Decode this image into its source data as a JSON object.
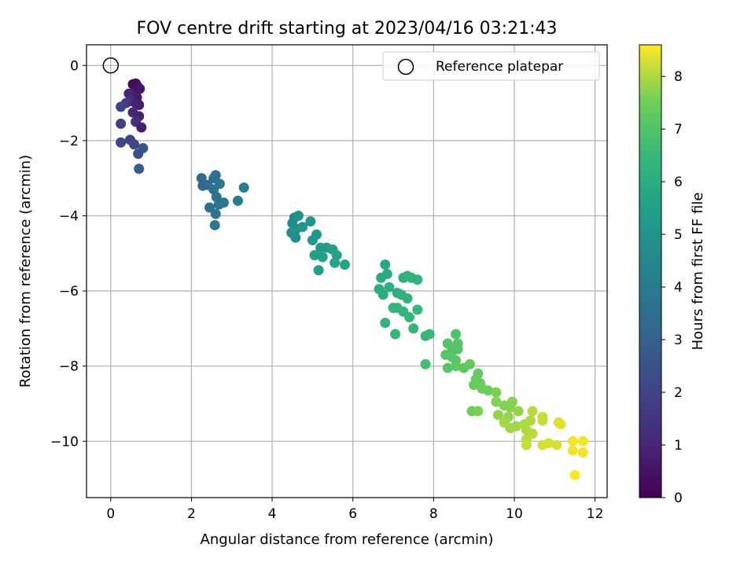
{
  "chart_data": {
    "type": "scatter",
    "title": "FOV centre drift starting at 2023/04/16 03:21:43",
    "xlabel": "Angular distance from reference (arcmin)",
    "ylabel": "Rotation from reference (arcmin)",
    "xlim": [
      -0.6,
      12.3
    ],
    "ylim": [
      -11.5,
      0.55
    ],
    "xticks": [
      0,
      2,
      4,
      6,
      8,
      10,
      12
    ],
    "yticks": [
      0,
      -2,
      -4,
      -6,
      -8,
      -10
    ],
    "xtick_labels": [
      "0",
      "2",
      "4",
      "6",
      "8",
      "10",
      "12"
    ],
    "ytick_labels": [
      "0",
      "−2",
      "−4",
      "−6",
      "−8",
      "−10"
    ],
    "grid": true,
    "legend": {
      "placement": "top-right",
      "entries": [
        "Reference platepar"
      ]
    },
    "reference_point": {
      "x": 0,
      "y": 0,
      "label": "Reference platepar"
    },
    "colorbar": {
      "label": "Hours from first FF file",
      "range": [
        0,
        8.6
      ],
      "ticks": [
        0,
        1,
        2,
        3,
        4,
        5,
        6,
        7,
        8
      ],
      "tick_labels": [
        "0",
        "1",
        "2",
        "3",
        "4",
        "5",
        "6",
        "7",
        "8"
      ],
      "colormap": "viridis"
    },
    "points": [
      {
        "x": 0.55,
        "y": -0.5,
        "c": 0.2
      },
      {
        "x": 0.62,
        "y": -0.48,
        "c": 0.3
      },
      {
        "x": 0.66,
        "y": -0.55,
        "c": 0.4
      },
      {
        "x": 0.6,
        "y": -0.7,
        "c": 0.5
      },
      {
        "x": 0.72,
        "y": -0.62,
        "c": 0.6
      },
      {
        "x": 0.65,
        "y": -0.85,
        "c": 0.7
      },
      {
        "x": 0.7,
        "y": -1.05,
        "c": 0.8
      },
      {
        "x": 0.45,
        "y": -0.75,
        "c": 1.0
      },
      {
        "x": 0.5,
        "y": -0.95,
        "c": 1.2
      },
      {
        "x": 0.62,
        "y": -1.0,
        "c": 0.9
      },
      {
        "x": 0.55,
        "y": -1.25,
        "c": 1.1
      },
      {
        "x": 0.38,
        "y": -1.0,
        "c": 1.7
      },
      {
        "x": 0.25,
        "y": -1.1,
        "c": 2.0
      },
      {
        "x": 0.7,
        "y": -1.35,
        "c": 0.9
      },
      {
        "x": 0.62,
        "y": -1.5,
        "c": 1.3
      },
      {
        "x": 0.76,
        "y": -1.65,
        "c": 0.8
      },
      {
        "x": 0.25,
        "y": -1.55,
        "c": 1.8
      },
      {
        "x": 0.25,
        "y": -2.05,
        "c": 2.0
      },
      {
        "x": 0.48,
        "y": -1.98,
        "c": 1.9
      },
      {
        "x": 0.58,
        "y": -2.1,
        "c": 2.1
      },
      {
        "x": 0.68,
        "y": -2.35,
        "c": 2.4
      },
      {
        "x": 0.8,
        "y": -2.2,
        "c": 2.6
      },
      {
        "x": 0.7,
        "y": -2.75,
        "c": 2.8
      },
      {
        "x": 2.25,
        "y": -3.0,
        "c": 3.3
      },
      {
        "x": 2.28,
        "y": -3.2,
        "c": 3.2
      },
      {
        "x": 2.4,
        "y": -3.18,
        "c": 3.4
      },
      {
        "x": 2.55,
        "y": -3.0,
        "c": 3.5
      },
      {
        "x": 2.6,
        "y": -2.92,
        "c": 3.6
      },
      {
        "x": 2.55,
        "y": -3.3,
        "c": 3.7
      },
      {
        "x": 2.7,
        "y": -3.15,
        "c": 3.8
      },
      {
        "x": 2.62,
        "y": -3.5,
        "c": 3.7
      },
      {
        "x": 2.8,
        "y": -3.65,
        "c": 3.9
      },
      {
        "x": 2.68,
        "y": -3.7,
        "c": 3.8
      },
      {
        "x": 2.45,
        "y": -3.78,
        "c": 3.6
      },
      {
        "x": 2.6,
        "y": -3.95,
        "c": 3.8
      },
      {
        "x": 2.58,
        "y": -4.25,
        "c": 3.9
      },
      {
        "x": 3.15,
        "y": -3.6,
        "c": 4.0
      },
      {
        "x": 3.3,
        "y": -3.25,
        "c": 4.1
      },
      {
        "x": 4.5,
        "y": -4.2,
        "c": 4.6
      },
      {
        "x": 4.55,
        "y": -4.05,
        "c": 4.7
      },
      {
        "x": 4.65,
        "y": -4.0,
        "c": 4.8
      },
      {
        "x": 4.48,
        "y": -4.45,
        "c": 4.7
      },
      {
        "x": 4.6,
        "y": -4.35,
        "c": 4.9
      },
      {
        "x": 4.58,
        "y": -4.58,
        "c": 4.8
      },
      {
        "x": 4.75,
        "y": -4.3,
        "c": 5.0
      },
      {
        "x": 4.95,
        "y": -4.15,
        "c": 5.1
      },
      {
        "x": 5.0,
        "y": -4.65,
        "c": 5.2
      },
      {
        "x": 5.1,
        "y": -4.5,
        "c": 5.2
      },
      {
        "x": 5.2,
        "y": -4.85,
        "c": 5.3
      },
      {
        "x": 5.35,
        "y": -4.85,
        "c": 5.3
      },
      {
        "x": 5.05,
        "y": -5.05,
        "c": 5.4
      },
      {
        "x": 5.25,
        "y": -5.1,
        "c": 5.5
      },
      {
        "x": 5.15,
        "y": -5.45,
        "c": 5.4
      },
      {
        "x": 5.5,
        "y": -4.9,
        "c": 5.5
      },
      {
        "x": 5.6,
        "y": -5.05,
        "c": 5.6
      },
      {
        "x": 5.55,
        "y": -5.25,
        "c": 5.6
      },
      {
        "x": 5.8,
        "y": -5.3,
        "c": 5.6
      },
      {
        "x": 6.8,
        "y": -5.3,
        "c": 5.8
      },
      {
        "x": 6.7,
        "y": -5.65,
        "c": 5.9
      },
      {
        "x": 6.85,
        "y": -5.55,
        "c": 5.9
      },
      {
        "x": 6.65,
        "y": -5.95,
        "c": 6.0
      },
      {
        "x": 6.75,
        "y": -6.1,
        "c": 6.0
      },
      {
        "x": 6.9,
        "y": -5.9,
        "c": 6.1
      },
      {
        "x": 7.1,
        "y": -6.05,
        "c": 6.1
      },
      {
        "x": 7.2,
        "y": -6.1,
        "c": 6.2
      },
      {
        "x": 7.25,
        "y": -5.65,
        "c": 6.1
      },
      {
        "x": 7.35,
        "y": -5.6,
        "c": 6.2
      },
      {
        "x": 7.45,
        "y": -5.65,
        "c": 6.2
      },
      {
        "x": 7.6,
        "y": -5.7,
        "c": 6.2
      },
      {
        "x": 7.0,
        "y": -6.45,
        "c": 6.3
      },
      {
        "x": 7.1,
        "y": -6.45,
        "c": 6.3
      },
      {
        "x": 7.25,
        "y": -6.55,
        "c": 6.3
      },
      {
        "x": 7.35,
        "y": -6.2,
        "c": 6.3
      },
      {
        "x": 7.4,
        "y": -6.7,
        "c": 6.4
      },
      {
        "x": 6.8,
        "y": -6.85,
        "c": 6.3
      },
      {
        "x": 7.05,
        "y": -7.15,
        "c": 6.4
      },
      {
        "x": 7.6,
        "y": -6.5,
        "c": 6.4
      },
      {
        "x": 7.5,
        "y": -7.0,
        "c": 6.4
      },
      {
        "x": 7.8,
        "y": -7.2,
        "c": 6.5
      },
      {
        "x": 7.9,
        "y": -7.15,
        "c": 6.5
      },
      {
        "x": 7.8,
        "y": -7.95,
        "c": 6.7
      },
      {
        "x": 8.55,
        "y": -7.15,
        "c": 6.9
      },
      {
        "x": 8.35,
        "y": -7.4,
        "c": 7.0
      },
      {
        "x": 8.45,
        "y": -7.5,
        "c": 7.0
      },
      {
        "x": 8.6,
        "y": -7.4,
        "c": 7.1
      },
      {
        "x": 8.6,
        "y": -7.55,
        "c": 7.0
      },
      {
        "x": 8.3,
        "y": -7.7,
        "c": 7.1
      },
      {
        "x": 8.45,
        "y": -7.75,
        "c": 7.1
      },
      {
        "x": 8.55,
        "y": -7.85,
        "c": 7.1
      },
      {
        "x": 8.35,
        "y": -8.05,
        "c": 7.1
      },
      {
        "x": 8.55,
        "y": -8.0,
        "c": 7.2
      },
      {
        "x": 8.75,
        "y": -8.05,
        "c": 7.2
      },
      {
        "x": 8.9,
        "y": -7.95,
        "c": 7.3
      },
      {
        "x": 9.1,
        "y": -8.2,
        "c": 7.3
      },
      {
        "x": 9.05,
        "y": -8.35,
        "c": 7.4
      },
      {
        "x": 9.15,
        "y": -8.45,
        "c": 7.4
      },
      {
        "x": 9.0,
        "y": -8.5,
        "c": 7.4
      },
      {
        "x": 9.2,
        "y": -8.6,
        "c": 7.5
      },
      {
        "x": 9.35,
        "y": -8.65,
        "c": 7.5
      },
      {
        "x": 9.55,
        "y": -8.7,
        "c": 7.6
      },
      {
        "x": 8.95,
        "y": -9.2,
        "c": 7.5
      },
      {
        "x": 9.1,
        "y": -9.2,
        "c": 7.6
      },
      {
        "x": 9.55,
        "y": -8.95,
        "c": 7.7
      },
      {
        "x": 9.75,
        "y": -9.05,
        "c": 7.7
      },
      {
        "x": 9.95,
        "y": -8.95,
        "c": 7.7
      },
      {
        "x": 9.9,
        "y": -9.1,
        "c": 7.7
      },
      {
        "x": 10.1,
        "y": -9.2,
        "c": 7.8
      },
      {
        "x": 9.6,
        "y": -9.3,
        "c": 7.8
      },
      {
        "x": 9.85,
        "y": -9.35,
        "c": 7.8
      },
      {
        "x": 9.75,
        "y": -9.5,
        "c": 7.9
      },
      {
        "x": 9.9,
        "y": -9.65,
        "c": 7.9
      },
      {
        "x": 10.05,
        "y": -9.6,
        "c": 7.9
      },
      {
        "x": 10.25,
        "y": -9.55,
        "c": 8.0
      },
      {
        "x": 10.4,
        "y": -9.45,
        "c": 8.0
      },
      {
        "x": 10.3,
        "y": -9.7,
        "c": 8.0
      },
      {
        "x": 10.45,
        "y": -9.8,
        "c": 8.1
      },
      {
        "x": 10.3,
        "y": -9.95,
        "c": 8.1
      },
      {
        "x": 10.3,
        "y": -10.1,
        "c": 8.2
      },
      {
        "x": 10.45,
        "y": -9.2,
        "c": 8.1
      },
      {
        "x": 10.7,
        "y": -9.35,
        "c": 8.2
      },
      {
        "x": 10.7,
        "y": -9.45,
        "c": 8.2
      },
      {
        "x": 10.7,
        "y": -10.1,
        "c": 8.3
      },
      {
        "x": 10.85,
        "y": -10.05,
        "c": 8.3
      },
      {
        "x": 11.05,
        "y": -10.1,
        "c": 8.3
      },
      {
        "x": 11.1,
        "y": -9.5,
        "c": 8.3
      },
      {
        "x": 11.15,
        "y": -9.55,
        "c": 8.4
      },
      {
        "x": 11.45,
        "y": -10.0,
        "c": 8.5
      },
      {
        "x": 11.7,
        "y": -10.0,
        "c": 8.5
      },
      {
        "x": 11.45,
        "y": -10.25,
        "c": 8.5
      },
      {
        "x": 11.7,
        "y": -10.3,
        "c": 8.5
      },
      {
        "x": 11.5,
        "y": -10.9,
        "c": 8.6
      }
    ]
  }
}
